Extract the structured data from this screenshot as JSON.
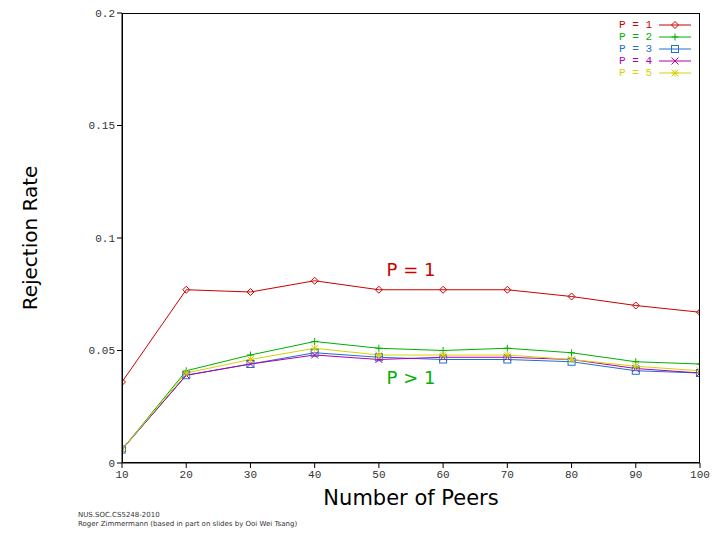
{
  "chart_data": {
    "type": "line",
    "x_label": "Number of Peers",
    "y_label": "Rejection Rate",
    "x": [
      10,
      20,
      30,
      40,
      50,
      60,
      70,
      80,
      90,
      100
    ],
    "series": [
      {
        "name": "P = 1",
        "color": "#cc0000",
        "marker": "diamond",
        "values": [
          0.036,
          0.077,
          0.076,
          0.081,
          0.077,
          0.077,
          0.077,
          0.074,
          0.07,
          0.067
        ]
      },
      {
        "name": "P = 2",
        "color": "#00b000",
        "marker": "plus",
        "values": [
          0.006,
          0.041,
          0.048,
          0.054,
          0.051,
          0.05,
          0.051,
          0.049,
          0.045,
          0.044
        ]
      },
      {
        "name": "P = 3",
        "color": "#1e6fd0",
        "marker": "square",
        "values": [
          0.006,
          0.039,
          0.044,
          0.049,
          0.047,
          0.046,
          0.046,
          0.045,
          0.041,
          0.04
        ]
      },
      {
        "name": "P = 4",
        "color": "#b000b0",
        "marker": "cross",
        "values": [
          0.006,
          0.039,
          0.044,
          0.048,
          0.046,
          0.047,
          0.047,
          0.046,
          0.042,
          0.04
        ]
      },
      {
        "name": "P = 5",
        "color": "#d4d400",
        "marker": "star",
        "values": [
          0.006,
          0.04,
          0.046,
          0.051,
          0.048,
          0.048,
          0.048,
          0.046,
          0.043,
          0.041
        ]
      }
    ],
    "xlim": [
      10,
      100
    ],
    "xticks": [
      10,
      20,
      30,
      40,
      50,
      60,
      70,
      80,
      90,
      100
    ],
    "ylim": [
      0,
      0.2
    ],
    "yticks": [
      0,
      0.05,
      0.1,
      0.15,
      0.2
    ],
    "grid": false,
    "legend": "upper right",
    "annotations": [
      "P = 1",
      "P > 1"
    ],
    "footer": [
      "NUS.SOC.CS5248-2010",
      "Roger Zimmermann (based in part on slides by Ooi Wei Tsang)"
    ]
  }
}
